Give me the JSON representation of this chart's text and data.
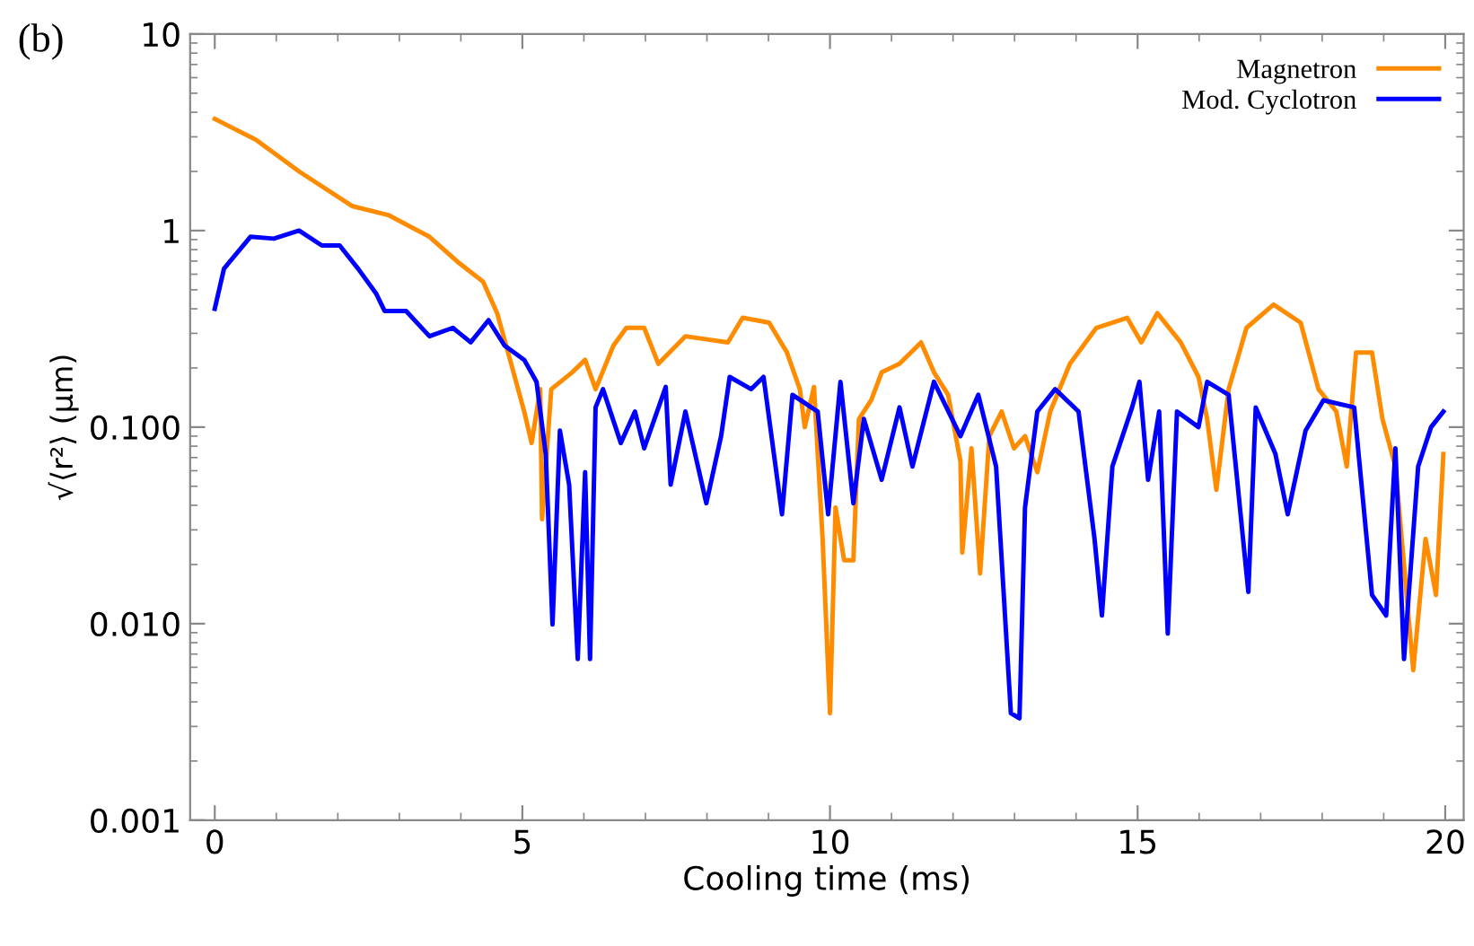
{
  "chart_data": {
    "type": "line",
    "xlabel": "Cooling time (ms)",
    "ylabel": "√⟨r²⟩ (μm)",
    "annotations": [
      "(b)"
    ],
    "log": "y",
    "xlim": [
      -0.4,
      20.3
    ],
    "ylim": [
      0.001,
      10
    ],
    "xticks": [
      0,
      5,
      10,
      15,
      20
    ],
    "yticks": [
      {
        "value": 0.001,
        "label": "0.001"
      },
      {
        "value": 0.01,
        "label": "0.010"
      },
      {
        "value": 0.1,
        "label": "0.100"
      },
      1,
      10
    ],
    "legend": "top right",
    "grid": false,
    "marker": "none",
    "line_style": "solid",
    "series": [
      {
        "name": "Magnetron",
        "color": "#ff8c00",
        "x": [
          0,
          0.67,
          1.37,
          2.24,
          2.82,
          3.49,
          3.98,
          4.36,
          4.59,
          4.8,
          5.03,
          5.15,
          5.29,
          5.32,
          5.47,
          5.81,
          6.02,
          6.19,
          6.48,
          6.69,
          6.98,
          7.21,
          7.65,
          8.34,
          8.58,
          9.01,
          9.3,
          9.51,
          9.59,
          9.74,
          9.88,
          10.0,
          10.09,
          10.23,
          10.38,
          10.47,
          10.67,
          10.84,
          11.13,
          11.48,
          11.69,
          11.92,
          12.12,
          12.15,
          12.3,
          12.44,
          12.59,
          12.79,
          12.99,
          13.17,
          13.37,
          13.58,
          13.9,
          14.33,
          14.83,
          15.06,
          15.32,
          15.7,
          15.99,
          16.13,
          16.28,
          16.48,
          16.77,
          17.21,
          17.65,
          17.94,
          18.23,
          18.4,
          18.55,
          18.81,
          18.98,
          19.19,
          19.48,
          19.68,
          19.85,
          19.97
        ],
        "values": [
          3.7,
          2.9,
          2.0,
          1.33,
          1.2,
          0.93,
          0.68,
          0.55,
          0.38,
          0.22,
          0.12,
          0.083,
          0.156,
          0.034,
          0.156,
          0.19,
          0.22,
          0.156,
          0.26,
          0.32,
          0.32,
          0.21,
          0.29,
          0.27,
          0.36,
          0.34,
          0.24,
          0.156,
          0.1,
          0.16,
          0.027,
          0.0035,
          0.039,
          0.021,
          0.021,
          0.11,
          0.137,
          0.19,
          0.21,
          0.27,
          0.19,
          0.146,
          0.067,
          0.023,
          0.078,
          0.018,
          0.09,
          0.12,
          0.078,
          0.09,
          0.059,
          0.12,
          0.21,
          0.32,
          0.36,
          0.27,
          0.38,
          0.27,
          0.18,
          0.11,
          0.048,
          0.156,
          0.32,
          0.42,
          0.34,
          0.156,
          0.12,
          0.063,
          0.24,
          0.24,
          0.11,
          0.063,
          0.0058,
          0.027,
          0.014,
          0.073
        ]
      },
      {
        "name": "Mod. Cyclotron",
        "color": "#0000ff",
        "x": [
          0,
          0.15,
          0.58,
          0.96,
          1.37,
          1.74,
          2.03,
          2.33,
          2.62,
          2.76,
          3.11,
          3.49,
          3.87,
          4.16,
          4.45,
          4.71,
          5.03,
          5.23,
          5.38,
          5.49,
          5.61,
          5.76,
          5.9,
          6.02,
          6.1,
          6.19,
          6.31,
          6.6,
          6.83,
          6.98,
          7.33,
          7.41,
          7.65,
          7.99,
          8.23,
          8.37,
          8.72,
          8.92,
          9.22,
          9.39,
          9.8,
          9.97,
          10.17,
          10.38,
          10.55,
          10.84,
          11.13,
          11.34,
          11.69,
          12.12,
          12.41,
          12.7,
          12.94,
          13.08,
          13.17,
          13.37,
          13.66,
          14.04,
          14.3,
          14.42,
          14.59,
          14.91,
          15.03,
          15.17,
          15.35,
          15.49,
          15.64,
          15.99,
          16.13,
          16.48,
          16.8,
          16.92,
          17.24,
          17.44,
          17.73,
          18.02,
          18.52,
          18.81,
          19.04,
          19.19,
          19.33,
          19.56,
          19.77,
          19.97
        ],
        "values": [
          0.4,
          0.64,
          0.93,
          0.91,
          1.0,
          0.84,
          0.84,
          0.64,
          0.48,
          0.39,
          0.39,
          0.29,
          0.32,
          0.27,
          0.35,
          0.26,
          0.22,
          0.17,
          0.073,
          0.0099,
          0.096,
          0.051,
          0.0066,
          0.059,
          0.0066,
          0.126,
          0.156,
          0.083,
          0.12,
          0.078,
          0.16,
          0.051,
          0.12,
          0.041,
          0.09,
          0.18,
          0.156,
          0.18,
          0.036,
          0.146,
          0.12,
          0.036,
          0.17,
          0.041,
          0.11,
          0.054,
          0.126,
          0.063,
          0.17,
          0.09,
          0.146,
          0.063,
          0.0035,
          0.0033,
          0.039,
          0.12,
          0.156,
          0.12,
          0.027,
          0.011,
          0.063,
          0.126,
          0.17,
          0.054,
          0.12,
          0.0089,
          0.12,
          0.1,
          0.17,
          0.146,
          0.0145,
          0.126,
          0.073,
          0.036,
          0.096,
          0.137,
          0.126,
          0.014,
          0.011,
          0.078,
          0.0066,
          0.063,
          0.1,
          0.12
        ]
      }
    ]
  }
}
